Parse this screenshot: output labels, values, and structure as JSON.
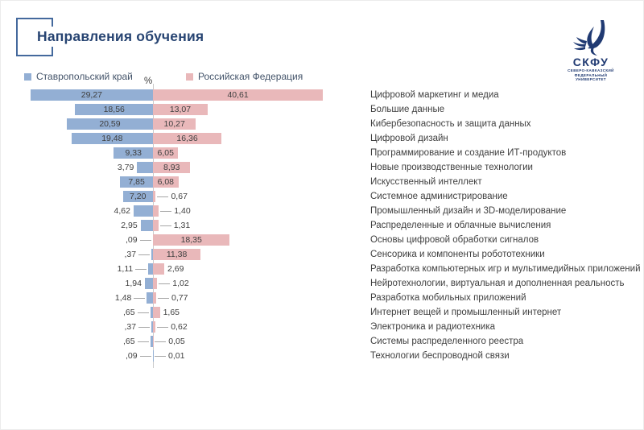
{
  "slide": {
    "title": "Направления обучения",
    "percent_label": "%"
  },
  "logo": {
    "acronym": "СКФУ",
    "line1": "СЕВЕРО-КАВКАЗСКИЙ",
    "line2": "ФЕДЕРАЛЬНЫЙ",
    "line3": "УНИВЕРСИТЕТ",
    "color": "#203a72"
  },
  "legend": [
    {
      "label": "Ставропольский край",
      "color": "#93afd4"
    },
    {
      "label": "Российская Федерация",
      "color": "#e9b8ba"
    }
  ],
  "chart_data": {
    "type": "bar",
    "orientation": "horizontal-diverging",
    "unit": "%",
    "axis": {
      "center_label": "%",
      "value_max": 41,
      "gridlines": false,
      "legend_position": "top"
    },
    "categories": [
      "Цифровой маркетинг и медиа",
      "Большие данные",
      "Кибербезопасность и защита данных",
      "Цифровой дизайн",
      "Программирование и создание ИТ-продуктов",
      "Новые производственные технологии",
      "Искусственный интеллект",
      "Системное администрирование",
      "Промышленный дизайн и 3D-моделирование",
      "Распределенные и облачные вычисления",
      "Основы цифровой обработки сигналов",
      "Сенсорика и компоненты робототехники",
      "Разработка компьютерных игр и мультимедийных приложений",
      "Нейротехнологии, виртуальная и дополненная реальность",
      "Разработка мобильных приложений",
      "Интернет вещей и промышленный интернет",
      "Электроника и радиотехника",
      "Системы распределенного реестра",
      "Технологии беспроводной связи"
    ],
    "series": [
      {
        "name": "Ставропольский край",
        "color": "#93afd4",
        "values": [
          29.27,
          18.56,
          20.59,
          19.48,
          9.33,
          3.79,
          7.85,
          7.2,
          4.62,
          2.95,
          0.09,
          0.37,
          1.11,
          1.94,
          1.48,
          0.65,
          0.37,
          0.65,
          0.09
        ]
      },
      {
        "name": "Российская Федерация",
        "color": "#e9b8ba",
        "values": [
          40.61,
          13.07,
          10.27,
          16.36,
          6.05,
          8.93,
          6.08,
          0.67,
          1.4,
          1.31,
          18.35,
          11.38,
          2.69,
          1.02,
          0.77,
          1.65,
          0.62,
          0.05,
          0.01
        ]
      }
    ],
    "value_labels": {
      "left": [
        "29,27",
        "18,56",
        "20,59",
        "19,48",
        "9,33",
        "3,79",
        "7,85",
        "7,20",
        "4,62",
        "2,95",
        ",09",
        ",37",
        "1,11",
        "1,94",
        "1,48",
        ",65",
        ",37",
        ",65",
        ",09"
      ],
      "right": [
        "40,61",
        "13,07",
        "10,27",
        "16,36",
        "6,05",
        "8,93",
        "6,08",
        "0,67",
        "1,40",
        "1,31",
        "18,35",
        "11,38",
        "2,69",
        "1,02",
        "0,77",
        "1,65",
        "0,62",
        "0,05",
        "0,01"
      ]
    }
  }
}
